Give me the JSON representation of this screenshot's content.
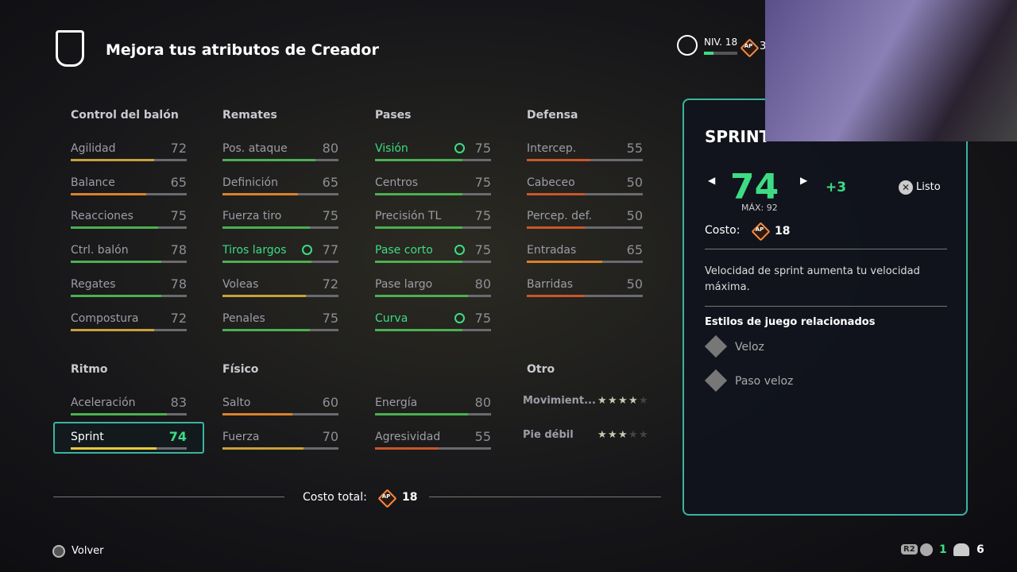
{
  "header": {
    "title": "Mejora tus atributos de Creador",
    "level": "NIV. 18",
    "points": "3"
  },
  "ap_label": "AP",
  "groups": [
    {
      "title": "Control del balón",
      "attributes": [
        {
          "name": "Agilidad",
          "value": 72
        },
        {
          "name": "Balance",
          "value": 65
        },
        {
          "name": "Reacciones",
          "value": 75
        },
        {
          "name": "Ctrl. balón",
          "value": 78
        },
        {
          "name": "Regates",
          "value": 78
        },
        {
          "name": "Compostura",
          "value": 72
        }
      ]
    },
    {
      "title": "Remates",
      "attributes": [
        {
          "name": "Pos. ataque",
          "value": 80
        },
        {
          "name": "Definición",
          "value": 65
        },
        {
          "name": "Fuerza tiro",
          "value": 75
        },
        {
          "name": "Tiros largos",
          "value": 77,
          "boosted": true
        },
        {
          "name": "Voleas",
          "value": 72
        },
        {
          "name": "Penales",
          "value": 75
        }
      ]
    },
    {
      "title": "Pases",
      "attributes": [
        {
          "name": "Visión",
          "value": 75,
          "boosted": true
        },
        {
          "name": "Centros",
          "value": 75
        },
        {
          "name": "Precisión TL",
          "value": 75
        },
        {
          "name": "Pase corto",
          "value": 75,
          "boosted": true
        },
        {
          "name": "Pase largo",
          "value": 80
        },
        {
          "name": "Curva",
          "value": 75,
          "boosted": true
        }
      ]
    },
    {
      "title": "Defensa",
      "attributes": [
        {
          "name": "Intercep.",
          "value": 55
        },
        {
          "name": "Cabeceo",
          "value": 50
        },
        {
          "name": "Percep. def.",
          "value": 50
        },
        {
          "name": "Entradas",
          "value": 65
        },
        {
          "name": "Barridas",
          "value": 50
        }
      ]
    },
    {
      "title": "Ritmo",
      "attributes": [
        {
          "name": "Aceleración",
          "value": 83
        },
        {
          "name": "Sprint",
          "value": 74,
          "selected": true
        }
      ]
    },
    {
      "title": "Físico",
      "attributes": [
        {
          "name": "Salto",
          "value": 60
        },
        {
          "name": "Fuerza",
          "value": 70
        }
      ]
    },
    {
      "attributes": [
        {
          "name": "Energía",
          "value": 80
        },
        {
          "name": "Agresividad",
          "value": 55
        }
      ]
    }
  ],
  "other": {
    "title": "Otro",
    "max_stars": 5,
    "items": [
      {
        "name": "Movimient...",
        "stars": 4
      },
      {
        "name": "Pie débil",
        "stars": 3
      }
    ]
  },
  "total": {
    "label": "Costo total:",
    "value": 18
  },
  "panel": {
    "title": "SPRINT",
    "value": 74,
    "max": "MÁX: 92",
    "delta": "+3",
    "done": "Listo",
    "cost_label": "Costo:",
    "cost": 18,
    "description": "Velocidad de sprint aumenta tu velocidad máxima.",
    "related_title": "Estilos de juego relacionados",
    "playstyles": [
      "Veloz",
      "Paso veloz"
    ]
  },
  "footer": {
    "back": "Volver",
    "badge": "R2",
    "count1": 1,
    "count2": 6
  }
}
